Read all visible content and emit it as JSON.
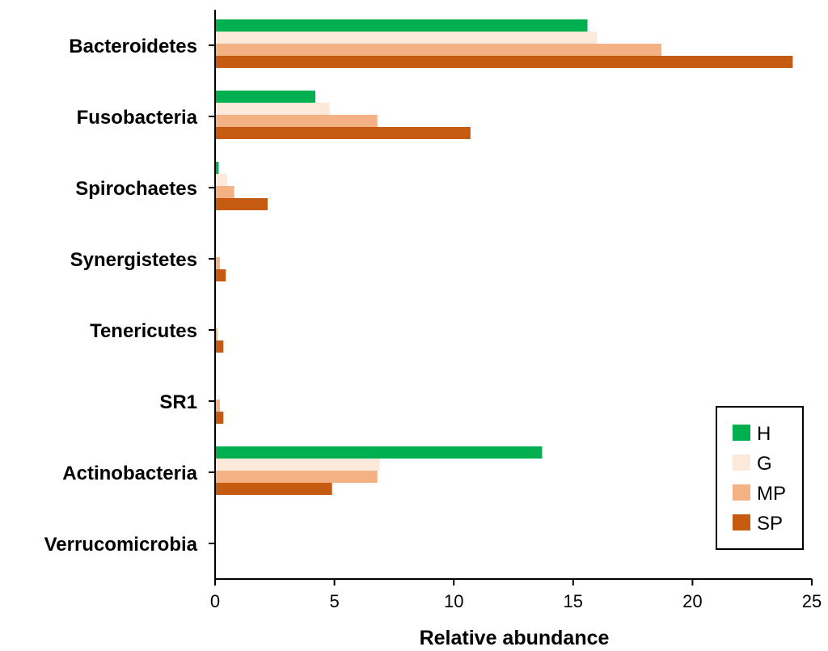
{
  "colors": {
    "H": "#00b050",
    "G": "#fde9d9",
    "MP": "#f4b183",
    "SP": "#c55a11",
    "axis": "#000000"
  },
  "chart_data": {
    "type": "bar",
    "orientation": "horizontal",
    "title": "",
    "xlabel": "Relative abundance",
    "ylabel": "",
    "xlim": [
      0,
      25
    ],
    "xticks": [
      0,
      5,
      10,
      15,
      20,
      25
    ],
    "grid": false,
    "legend_position": "bottom-right",
    "categories": [
      "Bacteroidetes",
      "Fusobacteria",
      "Spirochaetes",
      "Synergistetes",
      "Tenericutes",
      "SR1",
      "Actinobacteria",
      "Verrucomicrobia"
    ],
    "series": [
      {
        "name": "H",
        "values": [
          15.6,
          4.2,
          0.15,
          0.0,
          0.0,
          0.0,
          13.7,
          0.0
        ]
      },
      {
        "name": "G",
        "values": [
          16.0,
          4.8,
          0.5,
          0.05,
          0.05,
          0.05,
          6.9,
          0.0
        ]
      },
      {
        "name": "MP",
        "values": [
          18.7,
          6.8,
          0.8,
          0.2,
          0.1,
          0.2,
          6.8,
          0.0
        ]
      },
      {
        "name": "SP",
        "values": [
          24.2,
          10.7,
          2.2,
          0.45,
          0.35,
          0.35,
          4.9,
          0.0
        ]
      }
    ]
  }
}
